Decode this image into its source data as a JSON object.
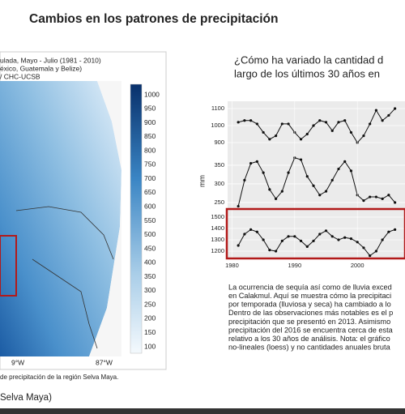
{
  "title": "Cambios en los patrones de precipitación",
  "map": {
    "header": [
      "ulada, Mayo - Julio (1981 - 2010)",
      "éxico, Guatemala y Belize)",
      "/ CHC-UCSB"
    ],
    "colorbar": [
      1000,
      950,
      900,
      850,
      800,
      750,
      700,
      650,
      600,
      550,
      500,
      450,
      400,
      350,
      300,
      250,
      200,
      150,
      100
    ],
    "xlabels": [
      "9°W",
      "87°W"
    ],
    "caption": "de precipitación de la región Selva Maya."
  },
  "footer": "Selva Maya)",
  "heading": [
    "¿Cómo ha variado la cantidad d",
    "largo de los últimos 30 años en"
  ],
  "chart_data": [
    {
      "type": "line",
      "x": [
        1981,
        1982,
        1983,
        1984,
        1985,
        1986,
        1987,
        1988,
        1989,
        1990,
        1991,
        1992,
        1993,
        1994,
        1995,
        1996,
        1997,
        1998,
        1999,
        2000,
        2001,
        2002,
        2003,
        2004,
        2005,
        2006
      ],
      "values": [
        1020,
        1030,
        1030,
        1010,
        960,
        920,
        940,
        1010,
        1010,
        960,
        920,
        950,
        1000,
        1030,
        1020,
        970,
        1020,
        1030,
        960,
        900,
        940,
        1010,
        1090,
        1030,
        1060,
        1100
      ],
      "xlim": [
        1979.3,
        2007.6
      ],
      "ylim": [
        843,
        1143
      ],
      "yticks": [
        1100,
        1000,
        900
      ],
      "color": "#111111",
      "grid": true
    },
    {
      "type": "line",
      "x": [
        1981,
        1982,
        1983,
        1984,
        1985,
        1986,
        1987,
        1988,
        1989,
        1990,
        1991,
        1992,
        1993,
        1994,
        1995,
        1996,
        1997,
        1998,
        1999,
        2000,
        2001,
        2002,
        2003,
        2004,
        2005,
        2006
      ],
      "values": [
        240,
        310,
        355,
        360,
        330,
        285,
        260,
        280,
        330,
        370,
        365,
        320,
        295,
        270,
        280,
        310,
        340,
        360,
        335,
        270,
        255,
        265,
        265,
        260,
        270,
        250
      ],
      "xlim": [
        1979.3,
        2007.6
      ],
      "ylim": [
        239,
        376
      ],
      "yticks": [
        350,
        300,
        250
      ],
      "ylabel": "mm",
      "color": "#111111",
      "grid": true
    },
    {
      "type": "line",
      "x": [
        1981,
        1982,
        1983,
        1984,
        1985,
        1986,
        1987,
        1988,
        1989,
        1990,
        1991,
        1992,
        1993,
        1994,
        1995,
        1996,
        1997,
        1998,
        1999,
        2000,
        2001,
        2002,
        2003,
        2004,
        2005,
        2006
      ],
      "values": [
        1250,
        1350,
        1390,
        1370,
        1300,
        1210,
        1200,
        1290,
        1330,
        1330,
        1290,
        1240,
        1290,
        1350,
        1380,
        1330,
        1300,
        1320,
        1310,
        1280,
        1230,
        1160,
        1200,
        1300,
        1370,
        1390
      ],
      "xlim": [
        1979.3,
        2007.6
      ],
      "ylim": [
        1143,
        1557
      ],
      "yticks": [
        1500,
        1400,
        1300,
        1200
      ],
      "xticks": [
        1980,
        1990,
        2000
      ],
      "color": "#111111",
      "grid": true
    }
  ],
  "paragraph": [
    "La ocurrencia de sequía así como de lluvia exced",
    "en Calakmul. Aquí se muestra cómo la precipitaci",
    "por temporada (lluviosa y seca) ha cambiado a lo",
    "Dentro de las observaciones más notables es el p",
    "precipitación que se presentó en 2013. Asimismo",
    "precipitación del 2016 se encuentra cerca de esta",
    "relativo a los 30 años de análisis. Nota: el gráfico",
    "no-lineales (loess) y no cantidades anuales bruta"
  ]
}
